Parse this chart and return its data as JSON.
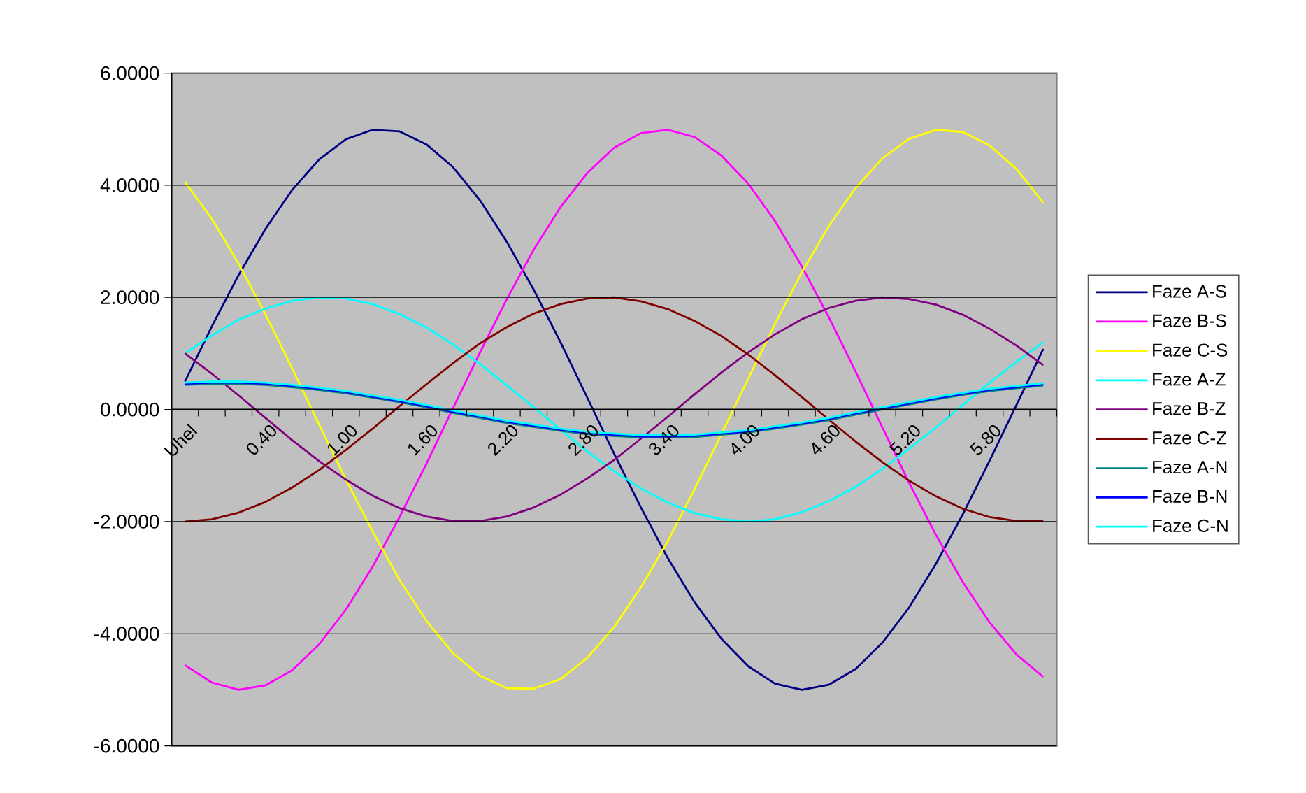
{
  "chart_data": {
    "type": "line",
    "categories": [
      "Uhel",
      null,
      null,
      "0.40",
      null,
      null,
      "1.00",
      null,
      null,
      "1.60",
      null,
      null,
      "2.20",
      null,
      null,
      "2.80",
      null,
      null,
      "3.40",
      null,
      null,
      "4.00",
      null,
      null,
      "4.60",
      null,
      null,
      "5.20",
      null,
      null,
      "5.80",
      null,
      null
    ],
    "series": [
      {
        "name": "Faze A-S",
        "color": "#000080",
        "values": [
          0.5,
          1.48,
          2.4,
          3.22,
          3.92,
          4.46,
          4.82,
          4.99,
          4.96,
          4.73,
          4.32,
          3.73,
          2.99,
          2.14,
          1.2,
          0.21,
          -0.79,
          -1.75,
          -2.65,
          -3.44,
          -4.09,
          -4.58,
          -4.89,
          -5.0,
          -4.91,
          -4.63,
          -4.16,
          -3.53,
          -2.75,
          -1.87,
          -0.91,
          0.08,
          1.08
        ]
      },
      {
        "name": "Faze B-S",
        "color": "#ff00ff",
        "values": [
          -4.56,
          -4.87,
          -5.0,
          -4.92,
          -4.65,
          -4.19,
          -3.57,
          -2.8,
          -1.92,
          -0.97,
          0.03,
          1.02,
          1.97,
          2.85,
          3.61,
          4.22,
          4.67,
          4.93,
          4.99,
          4.86,
          4.53,
          4.03,
          3.36,
          2.55,
          1.65,
          0.68,
          -0.32,
          -1.31,
          -2.24,
          -3.08,
          -3.8,
          -4.37,
          -4.77
        ]
      },
      {
        "name": "Faze C-S",
        "color": "#ffff00",
        "values": [
          4.06,
          3.4,
          2.6,
          1.7,
          0.73,
          -0.27,
          -1.25,
          -2.18,
          -3.04,
          -3.77,
          -4.35,
          -4.75,
          -4.97,
          -4.98,
          -4.81,
          -4.43,
          -3.88,
          -3.17,
          -2.35,
          -1.42,
          -0.44,
          0.55,
          1.53,
          2.45,
          3.27,
          3.95,
          4.48,
          4.83,
          4.99,
          4.95,
          4.71,
          4.29,
          3.69
        ]
      },
      {
        "name": "Faze A-Z",
        "color": "#00ffff",
        "values": [
          1.0,
          1.32,
          1.6,
          1.8,
          1.94,
          2.0,
          1.98,
          1.88,
          1.7,
          1.46,
          1.16,
          0.81,
          0.43,
          0.04,
          -0.36,
          -0.75,
          -1.1,
          -1.41,
          -1.66,
          -1.85,
          -1.96,
          -2.0,
          -1.96,
          -1.83,
          -1.64,
          -1.38,
          -1.06,
          -0.7,
          -0.32,
          0.08,
          0.48,
          0.85,
          1.2
        ]
      },
      {
        "name": "Faze B-Z",
        "color": "#800080",
        "values": [
          1.0,
          0.64,
          0.25,
          -0.15,
          -0.55,
          -0.92,
          -1.25,
          -1.54,
          -1.76,
          -1.91,
          -1.99,
          -1.99,
          -1.91,
          -1.75,
          -1.52,
          -1.23,
          -0.9,
          -0.52,
          -0.13,
          0.27,
          0.66,
          1.02,
          1.34,
          1.61,
          1.81,
          1.94,
          2.0,
          1.97,
          1.87,
          1.69,
          1.44,
          1.14,
          0.79
        ]
      },
      {
        "name": "Faze C-Z",
        "color": "#800000",
        "values": [
          -2.0,
          -1.96,
          -1.84,
          -1.65,
          -1.39,
          -1.08,
          -0.72,
          -0.34,
          0.06,
          0.45,
          0.83,
          1.18,
          1.47,
          1.71,
          1.88,
          1.98,
          2.0,
          1.93,
          1.79,
          1.58,
          1.31,
          0.98,
          0.61,
          0.22,
          -0.18,
          -0.57,
          -0.94,
          -1.27,
          -1.55,
          -1.77,
          -1.92,
          -1.99,
          -1.99
        ]
      },
      {
        "name": "Faze A-N",
        "color": "#008080",
        "values": [
          0.44,
          0.46,
          0.46,
          0.44,
          0.4,
          0.35,
          0.29,
          0.21,
          0.13,
          0.04,
          -0.06,
          -0.15,
          -0.24,
          -0.31,
          -0.38,
          -0.44,
          -0.47,
          -0.5,
          -0.5,
          -0.49,
          -0.45,
          -0.41,
          -0.34,
          -0.27,
          -0.19,
          -0.09,
          0.0,
          0.09,
          0.18,
          0.26,
          0.33,
          0.38,
          0.43
        ]
      },
      {
        "name": "Faze B-N",
        "color": "#0000ff",
        "values": [
          0.46,
          0.48,
          0.48,
          0.46,
          0.42,
          0.37,
          0.31,
          0.23,
          0.15,
          0.06,
          -0.04,
          -0.13,
          -0.22,
          -0.29,
          -0.36,
          -0.42,
          -0.45,
          -0.48,
          -0.48,
          -0.47,
          -0.43,
          -0.39,
          -0.32,
          -0.25,
          -0.17,
          -0.07,
          0.02,
          0.11,
          0.2,
          0.28,
          0.35,
          0.4,
          0.45
        ]
      },
      {
        "name": "Faze C-N",
        "color": "#00ffff",
        "values": [
          0.48,
          0.5,
          0.5,
          0.48,
          0.44,
          0.39,
          0.33,
          0.25,
          0.17,
          0.08,
          -0.02,
          -0.11,
          -0.2,
          -0.27,
          -0.34,
          -0.4,
          -0.43,
          -0.46,
          -0.46,
          -0.45,
          -0.41,
          -0.37,
          -0.3,
          -0.23,
          -0.15,
          -0.05,
          0.04,
          0.13,
          0.22,
          0.3,
          0.37,
          0.42,
          0.47
        ]
      }
    ],
    "ylim": [
      -6,
      6
    ],
    "yticks": [
      {
        "value": -6,
        "label": "-6.0000"
      },
      {
        "value": -4,
        "label": "-4.0000"
      },
      {
        "value": -2,
        "label": "-2.0000"
      },
      {
        "value": 0,
        "label": "0.0000"
      },
      {
        "value": 2,
        "label": "2.0000"
      },
      {
        "value": 4,
        "label": "4.0000"
      },
      {
        "value": 6,
        "label": "6.0000"
      }
    ],
    "grid": "y",
    "legend": "right",
    "line_style": "solid"
  }
}
